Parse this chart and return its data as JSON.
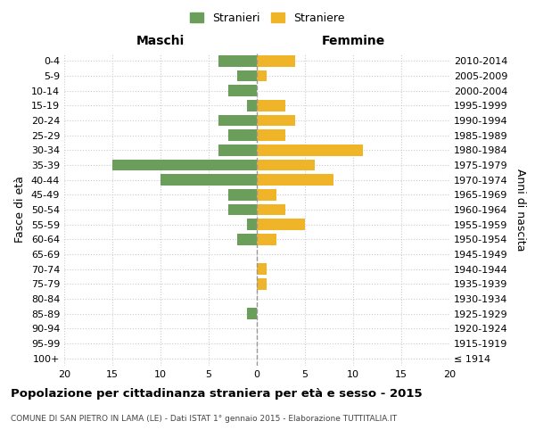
{
  "age_groups": [
    "100+",
    "95-99",
    "90-94",
    "85-89",
    "80-84",
    "75-79",
    "70-74",
    "65-69",
    "60-64",
    "55-59",
    "50-54",
    "45-49",
    "40-44",
    "35-39",
    "30-34",
    "25-29",
    "20-24",
    "15-19",
    "10-14",
    "5-9",
    "0-4"
  ],
  "birth_years": [
    "≤ 1914",
    "1915-1919",
    "1920-1924",
    "1925-1929",
    "1930-1934",
    "1935-1939",
    "1940-1944",
    "1945-1949",
    "1950-1954",
    "1955-1959",
    "1960-1964",
    "1965-1969",
    "1970-1974",
    "1975-1979",
    "1980-1984",
    "1985-1989",
    "1990-1994",
    "1995-1999",
    "2000-2004",
    "2005-2009",
    "2010-2014"
  ],
  "males": [
    0,
    0,
    0,
    1,
    0,
    0,
    0,
    0,
    2,
    1,
    3,
    3,
    10,
    15,
    4,
    3,
    4,
    1,
    3,
    2,
    4
  ],
  "females": [
    0,
    0,
    0,
    0,
    0,
    1,
    1,
    0,
    2,
    5,
    3,
    2,
    8,
    6,
    11,
    3,
    4,
    3,
    0,
    1,
    4
  ],
  "male_color": "#6a9e5a",
  "female_color": "#f0b429",
  "grid_color": "#cccccc",
  "center_line_color": "#999999",
  "xlim": 20,
  "title": "Popolazione per cittadinanza straniera per età e sesso - 2015",
  "subtitle": "COMUNE DI SAN PIETRO IN LAMA (LE) - Dati ISTAT 1° gennaio 2015 - Elaborazione TUTTITALIA.IT",
  "xlabel_left": "Maschi",
  "xlabel_right": "Femmine",
  "ylabel_left": "Fasce di età",
  "ylabel_right": "Anni di nascita",
  "legend_male": "Stranieri",
  "legend_female": "Straniere",
  "bg_color": "#ffffff",
  "plot_bg_color": "#ffffff"
}
